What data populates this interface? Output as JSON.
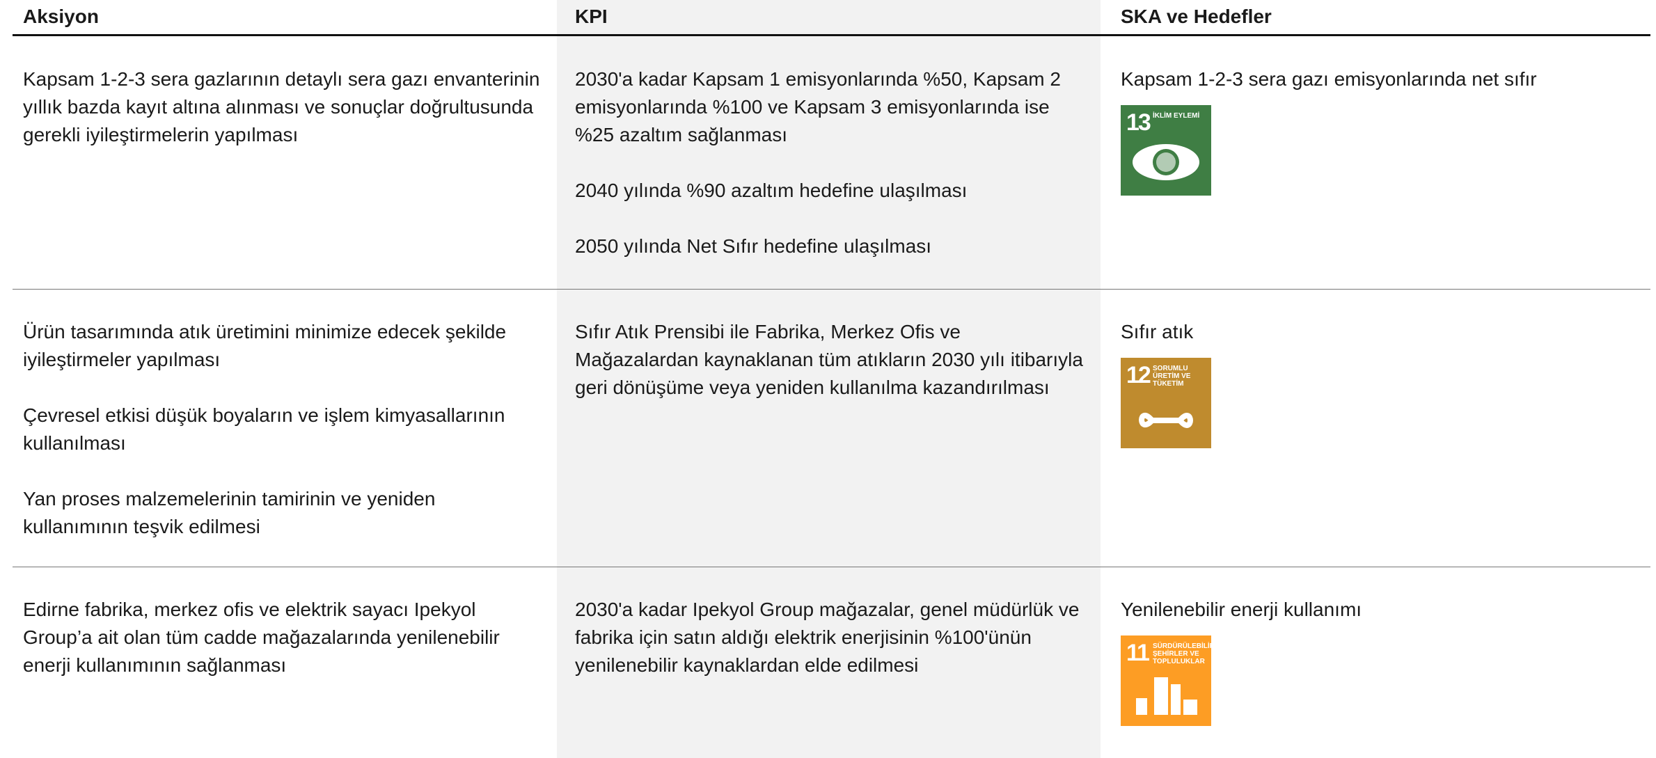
{
  "table": {
    "headers": [
      "Aksiyon",
      "KPI",
      "SKA ve Hedefler"
    ],
    "rows": [
      {
        "aksiyon": [
          "Kapsam 1-2-3 sera gazlarının detaylı sera gazı envanterinin yıllık bazda kayıt altına alınması ve sonuçlar doğrultusunda gerekli iyileştirmelerin yapılması"
        ],
        "kpi": [
          "2030'a kadar Kapsam 1 emisyonlarında %50, Kapsam 2 emisyonlarında %100 ve Kapsam 3 emisyonlarında ise %25 azaltım sağlanması",
          "2040 yılında %90 azaltım hedefine ulaşılması",
          "2050 yılında Net Sıfır hedefine ulaşılması"
        ],
        "ska": {
          "text": "Kapsam 1-2-3 sera gazı emisyonlarında net sıfır",
          "icon": {
            "number": "13",
            "label": "İKLİM EYLEMİ"
          }
        }
      },
      {
        "aksiyon": [
          "Ürün tasarımında atık üretimini minimize edecek şekilde iyileştirmeler yapılması",
          "Çevresel etkisi düşük boyaların ve işlem kimyasallarının kullanılması",
          "Yan proses malzemelerinin tamirinin ve yeniden kullanımının teşvik edilmesi"
        ],
        "kpi": [
          "Sıfır Atık Prensibi ile Fabrika, Merkez Ofis ve Mağazalardan kaynaklanan tüm atıkların 2030 yılı itibarıyla geri dönüşüme veya yeniden kullanılma kazandırılması"
        ],
        "ska": {
          "text": "Sıfır atık",
          "icon": {
            "number": "12",
            "label": "SORUMLU ÜRETİM VE TÜKETİM"
          }
        }
      },
      {
        "aksiyon": [
          "Edirne fabrika, merkez ofis ve elektrik sayacı Ipekyol Group’a ait olan tüm cadde mağazalarında yenilenebilir enerji kullanımının sağlanması"
        ],
        "kpi": [
          "2030'a kadar Ipekyol Group mağazalar, genel müdürlük ve fabrika için satın aldığı elektrik enerjisinin %100'ünün yenilenebilir kaynaklardan elde edilmesi"
        ],
        "ska": {
          "text": "Yenilenebilir enerji kullanımı",
          "icon": {
            "number": "11",
            "label": "SÜRDÜRÜLEBİLİR ŞEHİRLER VE TOPLULUKLAR"
          }
        }
      }
    ]
  }
}
